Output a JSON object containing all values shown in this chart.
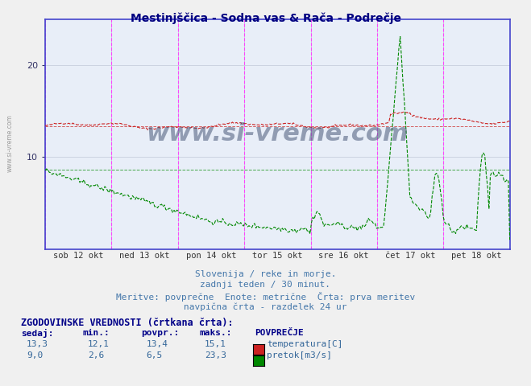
{
  "title": "Mestinjščica - Sodna vas & Rača - Podrečje",
  "title_color": "#000080",
  "bg_color": "#e8e8f0",
  "plot_bg_color": "#e8eef8",
  "grid_color": "#c0c8d8",
  "x_labels": [
    "sob 12 okt",
    "ned 13 okt",
    "pon 14 okt",
    "tor 15 okt",
    "sre 16 okt",
    "čet 17 okt",
    "pet 18 okt"
  ],
  "vline_color": "#ff44ff",
  "axis_color": "#4444cc",
  "temp_color": "#cc2222",
  "flow_color": "#008800",
  "temp_avg": 13.4,
  "flow_avg": 8.6,
  "temp_min": 12.1,
  "temp_max": 15.1,
  "flow_min": 2.6,
  "flow_max": 23.3,
  "temp_current": 13.3,
  "flow_current": 9.0,
  "watermark": "www.si-vreme.com",
  "subtitle1": "Slovenija / reke in morje.",
  "subtitle2": "zadnji teden / 30 minut.",
  "subtitle3": "Meritve: povprečne  Enote: metrične  Črta: prva meritev",
  "subtitle4": "navpična črta - razdelek 24 ur",
  "table_header": "ZGODOVINSKE VREDNOSTI (črtkana črta):",
  "ylim_min": 0,
  "ylim_max": 25,
  "yticks": [
    10,
    20
  ],
  "n_points": 336
}
